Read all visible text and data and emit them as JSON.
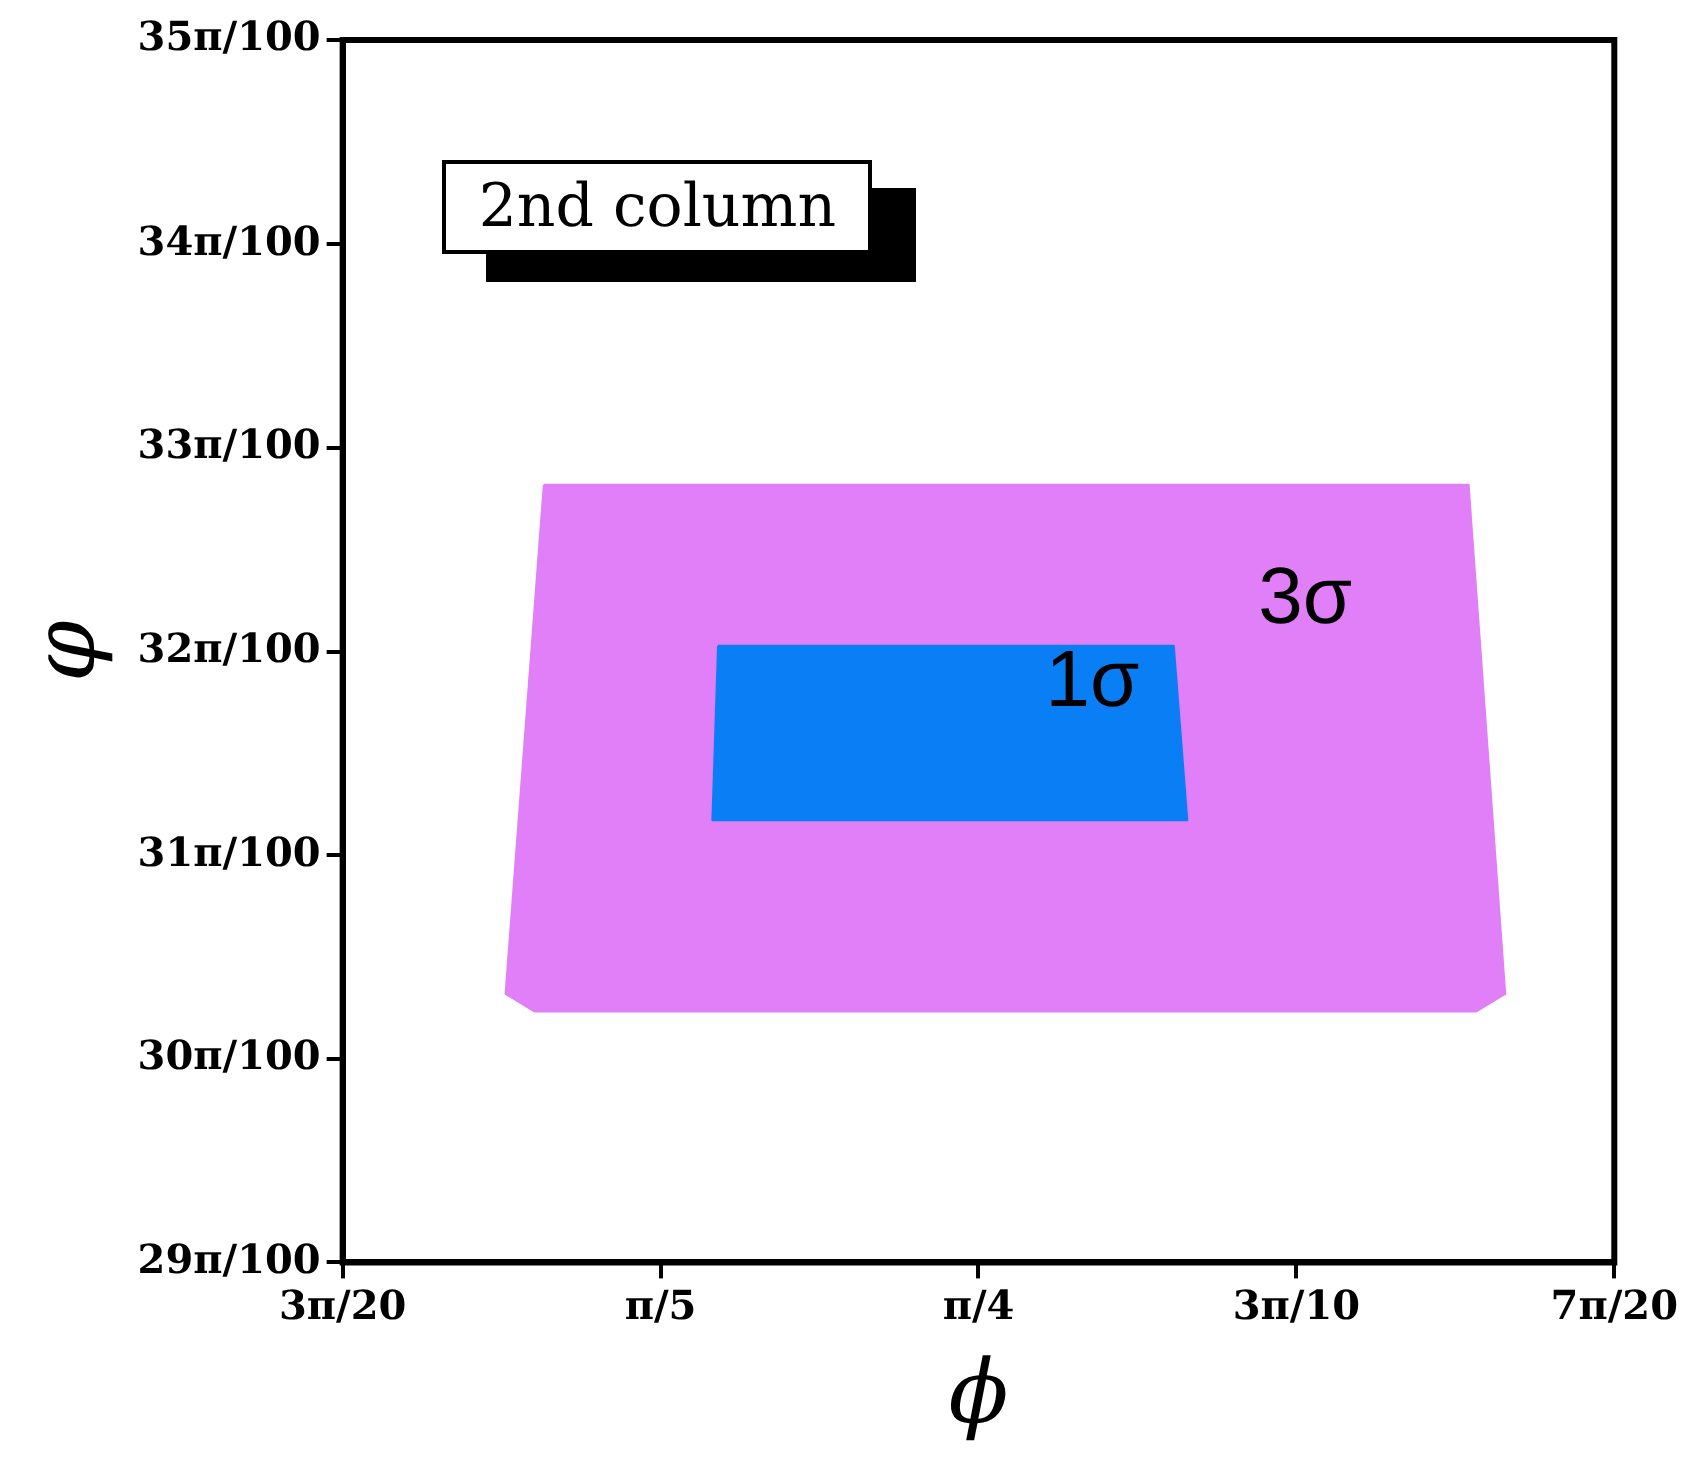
{
  "chart_data": {
    "type": "area",
    "xlabel": "ϕ",
    "ylabel": "φ",
    "series": [
      {
        "name": "3σ",
        "color": "#e07ff8",
        "x": [
          0.5706,
          1.0276,
          1.0457,
          1.0314,
          0.5659,
          0.5517,
          0.5706
        ],
        "values": [
          1.031,
          1.031,
          0.9525,
          0.9498,
          0.9498,
          0.9525,
          1.031
        ]
      },
      {
        "name": "1σ",
        "color": "#0a7ff5",
        "x": [
          0.6567,
          0.8819,
          0.8886,
          0.6539,
          0.6567
        ],
        "values": [
          1.0062,
          1.0062,
          0.9793,
          0.9793,
          1.0062
        ]
      }
    ],
    "annotations": [
      "2nd column"
    ],
    "xlim": [
      0.4712,
      1.0996
    ],
    "ylim": [
      0.9111,
      1.0996
    ],
    "xticks": [
      {
        "value": 0.4712,
        "label": "3π/20"
      },
      {
        "value": 0.6283,
        "label": "π/5"
      },
      {
        "value": 0.7854,
        "label": "π/4"
      },
      {
        "value": 0.9425,
        "label": "3π/10"
      },
      {
        "value": 1.0996,
        "label": "7π/20"
      }
    ],
    "yticks": [
      {
        "value": 0.9111,
        "label": "29π/100"
      },
      {
        "value": 0.9425,
        "label": "30π/100"
      },
      {
        "value": 0.9739,
        "label": "31π/100"
      },
      {
        "value": 1.0053,
        "label": "32π/100"
      },
      {
        "value": 1.0367,
        "label": "33π/100"
      },
      {
        "value": 1.0681,
        "label": "34π/100"
      },
      {
        "value": 1.0996,
        "label": "35π/100"
      }
    ],
    "grid": false,
    "legend": false,
    "marker": "none"
  }
}
